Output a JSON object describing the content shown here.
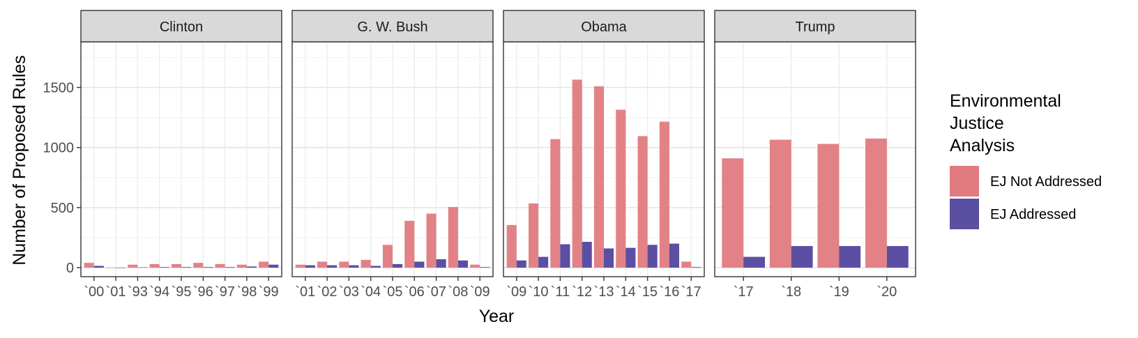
{
  "chart_data": {
    "type": "bar",
    "ylabel": "Number of Proposed Rules",
    "xlabel": "Year",
    "ylim": [
      -75,
      1880
    ],
    "yticks": [
      0,
      500,
      1000,
      1500
    ],
    "grid": true,
    "legend": {
      "title_lines": [
        "Environmental",
        "Justice",
        "Analysis"
      ],
      "placement": "right",
      "items": [
        {
          "label": "EJ Not Addressed",
          "color": "#E07B80"
        },
        {
          "label": "EJ Addressed",
          "color": "#5A4FA3"
        }
      ]
    },
    "series_names": [
      "EJ Not Addressed",
      "EJ Addressed"
    ],
    "panels": [
      {
        "title": "Clinton",
        "categories": [
          "`00",
          "`01",
          "`93",
          "`94",
          "`95",
          "`96",
          "`97",
          "`98",
          "`99"
        ],
        "series": [
          {
            "name": "EJ Not Addressed",
            "values": [
              40,
              0,
              25,
              30,
              30,
              40,
              30,
              25,
              50
            ]
          },
          {
            "name": "EJ Addressed",
            "values": [
              15,
              0,
              3,
              5,
              5,
              5,
              5,
              10,
              25
            ]
          }
        ]
      },
      {
        "title": "G. W. Bush",
        "categories": [
          "`01",
          "`02",
          "`03",
          "`04",
          "`05",
          "`06",
          "`07",
          "`08",
          "`09"
        ],
        "series": [
          {
            "name": "EJ Not Addressed",
            "values": [
              25,
              50,
              50,
              65,
              190,
              390,
              450,
              505,
              25
            ]
          },
          {
            "name": "EJ Addressed",
            "values": [
              20,
              20,
              20,
              15,
              30,
              50,
              70,
              60,
              5
            ]
          }
        ]
      },
      {
        "title": "Obama",
        "categories": [
          "`09",
          "`10",
          "`11",
          "`12",
          "`13",
          "`14",
          "`15",
          "`16",
          "`17"
        ],
        "series": [
          {
            "name": "EJ Not Addressed",
            "values": [
              355,
              535,
              1070,
              1565,
              1510,
              1315,
              1095,
              1215,
              50
            ]
          },
          {
            "name": "EJ Addressed",
            "values": [
              60,
              90,
              195,
              215,
              160,
              165,
              190,
              200,
              5
            ]
          }
        ]
      },
      {
        "title": "Trump",
        "categories": [
          "`17",
          "`18",
          "`19",
          "`20"
        ],
        "series": [
          {
            "name": "EJ Not Addressed",
            "values": [
              910,
              1065,
              1030,
              1075
            ]
          },
          {
            "name": "EJ Addressed",
            "values": [
              90,
              180,
              180,
              180
            ]
          }
        ]
      }
    ]
  }
}
